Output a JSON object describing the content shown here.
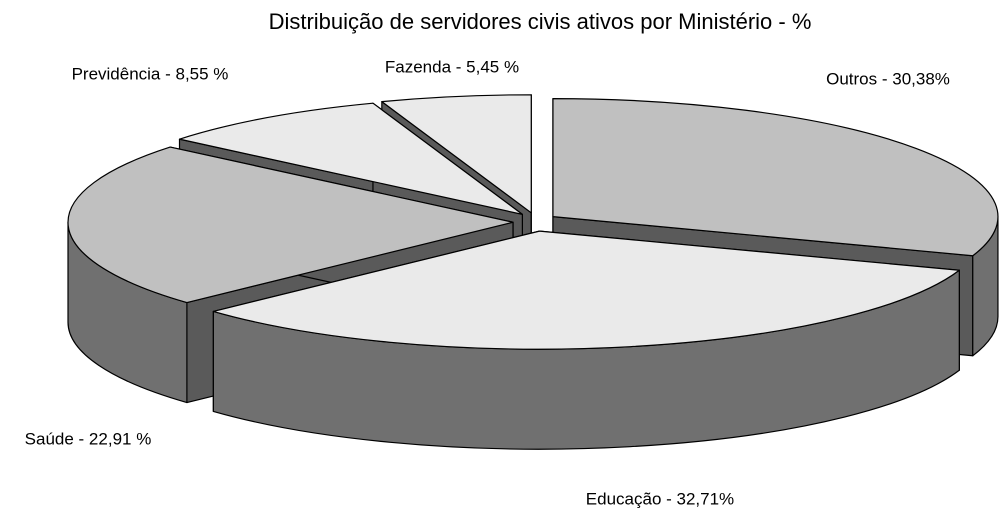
{
  "chart_data": {
    "type": "pie",
    "title": "Distribuição de servidores civis ativos por Ministério - %",
    "values": [
      30.38,
      32.71,
      22.91,
      8.55,
      5.45
    ],
    "value_labels": [
      "Outros - 30,38%",
      "Educação - 32,71%",
      "Saúde - 22,91 %",
      "Previdência - 8,55 %",
      "Fazenda - 5,45 %"
    ],
    "colors": [
      "#c0c0c0",
      "#eaeaea",
      "#c0c0c0",
      "#eaeaea",
      "#eaeaea"
    ]
  }
}
